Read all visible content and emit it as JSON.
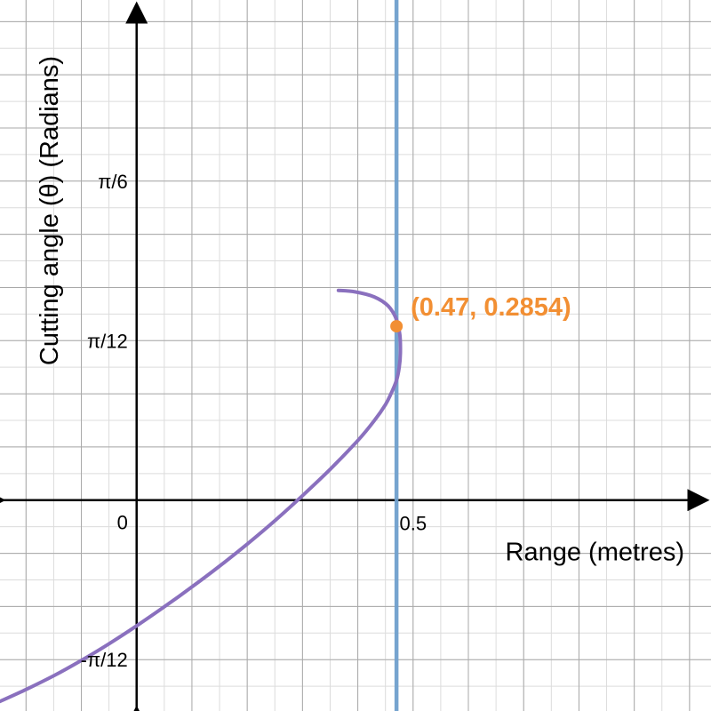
{
  "chart_data": {
    "type": "line",
    "title": "",
    "xlabel": "Range (metres)",
    "ylabel": "Cutting angle (θ) (Radians)",
    "xlim": [
      -0.2471,
      1.0388
    ],
    "ylim": [
      -0.3461,
      0.8209
    ],
    "grid": true,
    "x_ticks": [
      {
        "value": 0.5,
        "label": "0.5"
      }
    ],
    "y_ticks": [
      {
        "value": 0.5236,
        "label": "π/6"
      },
      {
        "value": 0.2618,
        "label": "π/12"
      },
      {
        "value": -0.2618,
        "label": "-π/12"
      }
    ],
    "origin_label": "0",
    "series": [
      {
        "color": "#8a70be",
        "x": [
          -0.2471,
          -0.2,
          -0.15,
          -0.1,
          -0.05,
          0,
          0.05,
          0.1,
          0.15,
          0.2,
          0.25,
          0.3,
          0.35,
          0.4,
          0.43,
          0.45,
          0.46,
          0.47,
          0.475,
          0.477,
          0.476,
          0.47,
          0.455,
          0.43,
          0.395,
          0.365
        ],
        "y": [
          -0.3303,
          -0.3108,
          -0.2883,
          -0.2631,
          -0.2358,
          -0.2063,
          -0.1752,
          -0.1425,
          -0.1083,
          -0.0722,
          -0.0338,
          0.0073,
          0.0506,
          0.0978,
          0.1306,
          0.1567,
          0.1745,
          0.1965,
          0.2183,
          0.2416,
          0.2712,
          0.2965,
          0.3186,
          0.3335,
          0.3419,
          0.3442
        ]
      }
    ],
    "vertical_lines": [
      {
        "x": 0.47,
        "color": "#6f9fcc"
      }
    ],
    "points": [
      {
        "x": 0.47,
        "y": 0.2854,
        "label": "(0.47, 0.2854)",
        "color": "#f28f33"
      }
    ]
  }
}
